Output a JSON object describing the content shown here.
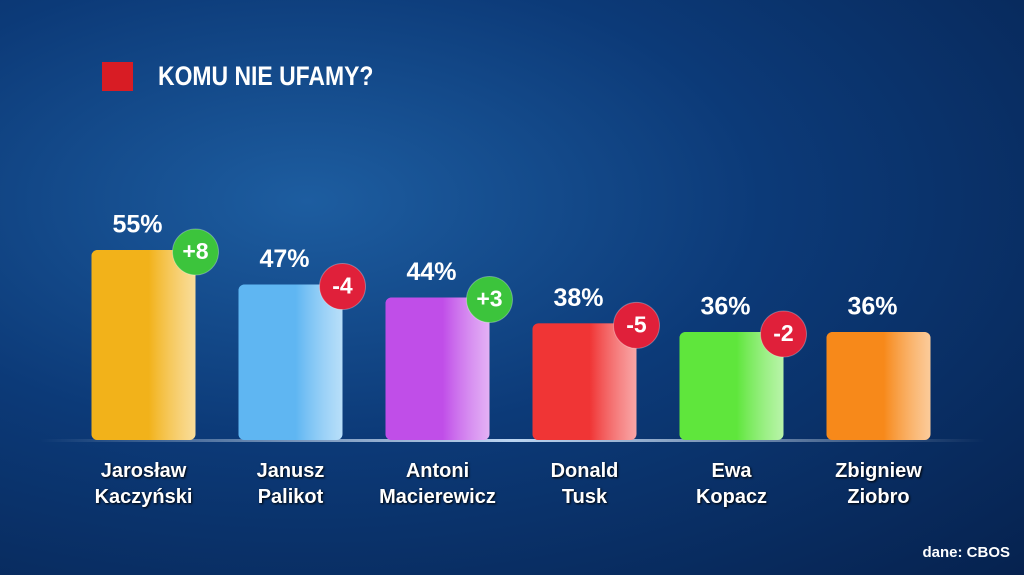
{
  "chart_data": {
    "type": "bar",
    "title": "KOMU NIE UFAMY?",
    "categories": [
      "Jarosław Kaczyński",
      "Janusz Palikot",
      "Antoni Macierewicz",
      "Donald Tusk",
      "Ewa Kopacz",
      "Zbigniew Ziobro"
    ],
    "values": [
      55,
      47,
      44,
      38,
      36,
      36
    ],
    "value_labels": [
      "55%",
      "47%",
      "44%",
      "38%",
      "36%",
      "36%"
    ],
    "changes": [
      8,
      -4,
      3,
      -5,
      -2,
      null
    ],
    "change_labels": [
      "+8",
      "-4",
      "+3",
      "-5",
      "-2",
      null
    ],
    "colors": [
      "#f2b21a",
      "#5fb6f2",
      "#c04ee8",
      "#f03535",
      "#5fe63c",
      "#f7891a"
    ],
    "up_color": "#3cc43c",
    "down_color": "#e0203a",
    "ylim": [
      11,
      55
    ],
    "source": "dane: CBOS"
  }
}
